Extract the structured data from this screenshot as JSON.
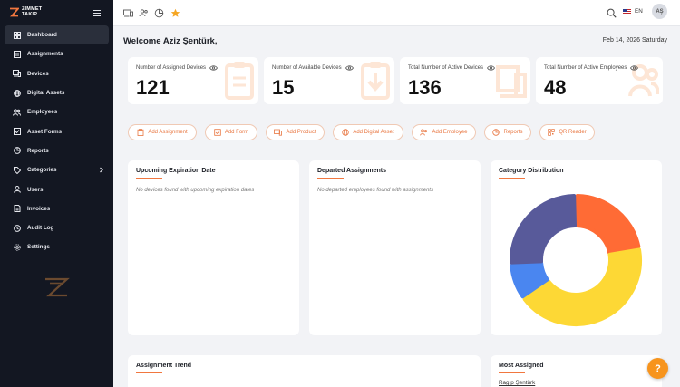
{
  "app": {
    "logo_line1": "ZIMMET",
    "logo_line2": "TAKIP"
  },
  "sidebar": {
    "items": [
      {
        "label": "Dashboard",
        "icon": "dashboard-icon",
        "active": true
      },
      {
        "label": "Assignments",
        "icon": "assignments-icon"
      },
      {
        "label": "Devices",
        "icon": "devices-icon"
      },
      {
        "label": "Digital Assets",
        "icon": "digital-assets-icon"
      },
      {
        "label": "Employees",
        "icon": "employees-icon"
      },
      {
        "label": "Asset Forms",
        "icon": "asset-forms-icon"
      },
      {
        "label": "Reports",
        "icon": "reports-icon"
      },
      {
        "label": "Categories",
        "icon": "categories-icon",
        "has_submenu": true
      },
      {
        "label": "Users",
        "icon": "users-icon"
      },
      {
        "label": "Invoices",
        "icon": "invoices-icon"
      },
      {
        "label": "Audit Log",
        "icon": "audit-log-icon"
      },
      {
        "label": "Settings",
        "icon": "settings-icon"
      }
    ]
  },
  "topbar": {
    "language": "EN",
    "avatar_initials": "AŞ"
  },
  "header": {
    "welcome": "Welcome Aziz Şentürk,",
    "date": "Feb 14, 2026 Saturday"
  },
  "stats": [
    {
      "label": "Number of Assigned Devices",
      "value": "121"
    },
    {
      "label": "Number of Available Devices",
      "value": "15"
    },
    {
      "label": "Total Number of Active Devices",
      "value": "136"
    },
    {
      "label": "Total Number of Active Employees",
      "value": "48"
    }
  ],
  "quick_actions": [
    {
      "label": "Add Assignment"
    },
    {
      "label": "Add Form"
    },
    {
      "label": "Add Product"
    },
    {
      "label": "Add Digital Asset"
    },
    {
      "label": "Add Employee"
    },
    {
      "label": "Reports"
    },
    {
      "label": "QR Reader"
    }
  ],
  "panels": {
    "upcoming": {
      "title": "Upcoming Expiration Date",
      "empty": "No devices found with upcoming expiration dates"
    },
    "departed": {
      "title": "Departed Assignments",
      "empty": "No departed employees found with assignments"
    },
    "category": {
      "title": "Category Distribution"
    },
    "trend": {
      "title": "Assignment Trend"
    },
    "most": {
      "title": "Most Assigned",
      "first_name": "Ragıp Şentürk"
    }
  },
  "chart_data": {
    "type": "pie",
    "variant": "donut",
    "title": "Category Distribution",
    "series": [
      {
        "value": 22,
        "color": "#ff6b35"
      },
      {
        "value": 43,
        "color": "#fdd835"
      },
      {
        "value": 9,
        "color": "#4a86f0"
      },
      {
        "value": 26,
        "color": "#585a9a"
      }
    ]
  },
  "help": {
    "label": "?"
  },
  "colors": {
    "accent": "#f1773f",
    "sidebar_bg": "#131722",
    "star": "#f5a623"
  }
}
